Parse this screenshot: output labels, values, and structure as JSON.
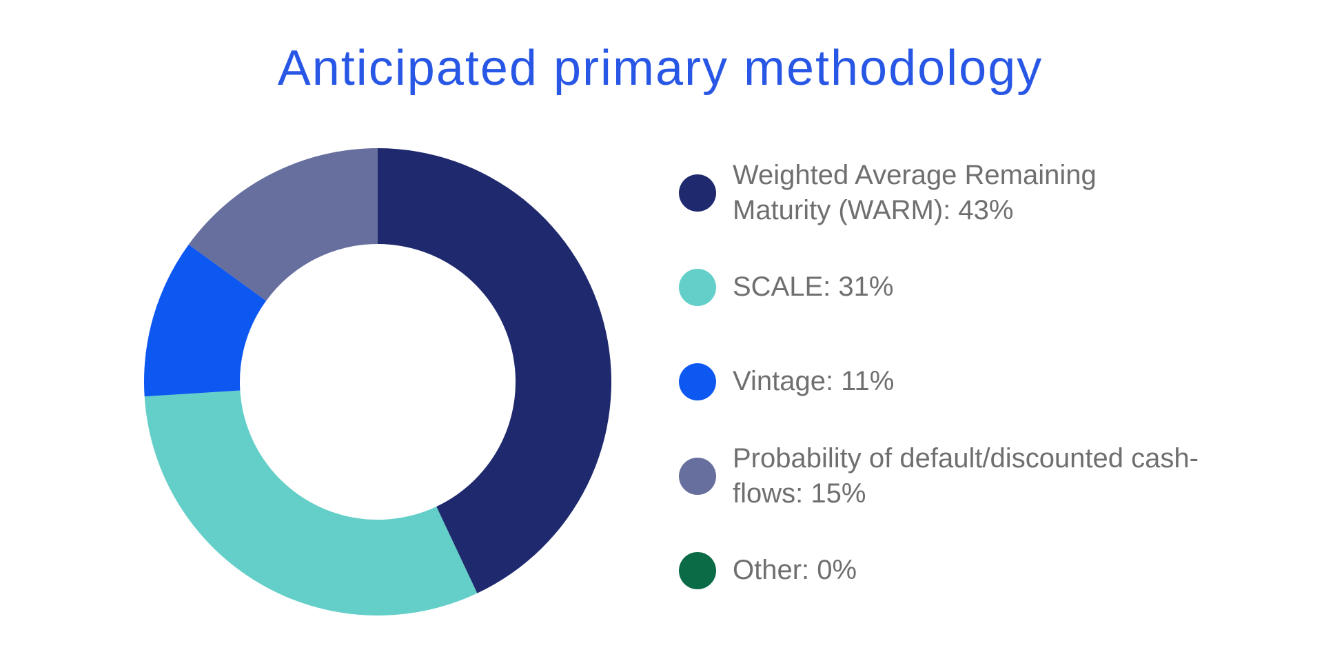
{
  "title": {
    "text": "Anticipated primary methodology",
    "color": "#2857e6"
  },
  "chart_data": {
    "type": "pie",
    "subtype": "donut",
    "title": "Anticipated primary methodology",
    "start_angle_deg": 0,
    "direction": "clockwise",
    "inner_radius_ratio": 0.59,
    "legend_position": "right",
    "series": [
      {
        "label": "Weighted Average Remaining Maturity (WARM)",
        "value_pct": 43,
        "color": "#1f2a6e"
      },
      {
        "label": "SCALE",
        "value_pct": 31,
        "color": "#64cfc8"
      },
      {
        "label": "Vintage",
        "value_pct": 11,
        "color": "#0e58f2"
      },
      {
        "label": "Probability of default/discounted cash-flows",
        "value_pct": 15,
        "color": "#666f9d"
      },
      {
        "label": "Other",
        "value_pct": 0,
        "color": "#0a6b46"
      }
    ]
  },
  "legend": {
    "text_color": "#6f6f6f",
    "items": [
      {
        "label": "Weighted Average Remaining Maturity (WARM): 43%",
        "color": "#1f2a6e"
      },
      {
        "label": "SCALE: 31%",
        "color": "#64cfc8"
      },
      {
        "label": "Vintage: 11%",
        "color": "#0e58f2"
      },
      {
        "label": "Probability of default/discounted cash-flows: 15%",
        "color": "#666f9d"
      },
      {
        "label": "Other: 0%",
        "color": "#0a6b46"
      }
    ]
  }
}
